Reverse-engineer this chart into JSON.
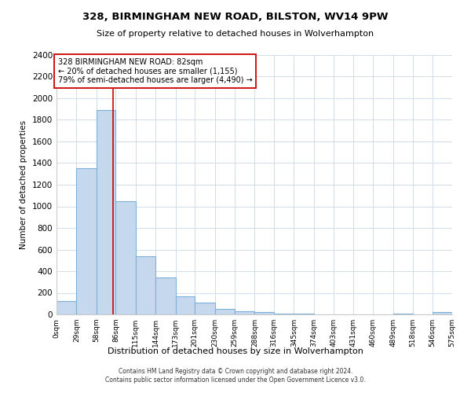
{
  "title": "328, BIRMINGHAM NEW ROAD, BILSTON, WV14 9PW",
  "subtitle": "Size of property relative to detached houses in Wolverhampton",
  "xlabel": "Distribution of detached houses by size in Wolverhampton",
  "ylabel": "Number of detached properties",
  "bin_edges": [
    0,
    29,
    58,
    86,
    115,
    144,
    173,
    201,
    230,
    259,
    288,
    316,
    345,
    374,
    403,
    431,
    460,
    489,
    518,
    546,
    575
  ],
  "bar_heights": [
    125,
    1350,
    1890,
    1050,
    540,
    340,
    165,
    110,
    50,
    30,
    20,
    10,
    5,
    0,
    0,
    0,
    0,
    10,
    0,
    20
  ],
  "bar_color": "#c5d8ee",
  "bar_edge_color": "#7fb0d8",
  "property_line_x": 82,
  "property_line_color": "#cc0000",
  "annotation_title": "328 BIRMINGHAM NEW ROAD: 82sqm",
  "annotation_line1": "← 20% of detached houses are smaller (1,155)",
  "annotation_line2": "79% of semi-detached houses are larger (4,490) →",
  "annotation_box_color": "#ffffff",
  "annotation_box_edge": "#cc0000",
  "ylim": [
    0,
    2400
  ],
  "yticks": [
    0,
    200,
    400,
    600,
    800,
    1000,
    1200,
    1400,
    1600,
    1800,
    2000,
    2200,
    2400
  ],
  "tick_labels": [
    "0sqm",
    "29sqm",
    "58sqm",
    "86sqm",
    "115sqm",
    "144sqm",
    "173sqm",
    "201sqm",
    "230sqm",
    "259sqm",
    "288sqm",
    "316sqm",
    "345sqm",
    "374sqm",
    "403sqm",
    "431sqm",
    "460sqm",
    "489sqm",
    "518sqm",
    "546sqm",
    "575sqm"
  ],
  "tick_positions": [
    0,
    29,
    58,
    86,
    115,
    144,
    173,
    201,
    230,
    259,
    288,
    316,
    345,
    374,
    403,
    431,
    460,
    489,
    518,
    546,
    575
  ],
  "footer_line1": "Contains HM Land Registry data © Crown copyright and database right 2024.",
  "footer_line2": "Contains public sector information licensed under the Open Government Licence v3.0.",
  "background_color": "#ffffff",
  "grid_color": "#d0dce8"
}
